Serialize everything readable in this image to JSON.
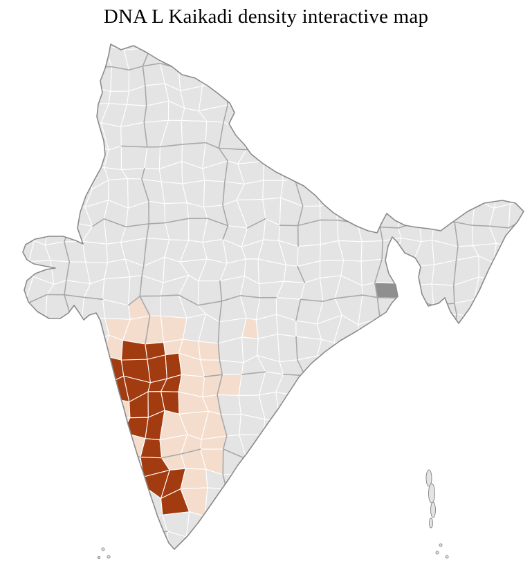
{
  "title": "DNA L Kaikadi density interactive map",
  "map": {
    "colors": {
      "background": "#ffffff",
      "district_fill": "#e4e4e4",
      "district_border": "#ffffff",
      "state_border": "#a8a8a8",
      "country_border": "#8a8a8a",
      "high_density": "#a23c10",
      "low_density": "#f4ddcd",
      "no_data_dark": "#8f8f8f"
    }
  }
}
